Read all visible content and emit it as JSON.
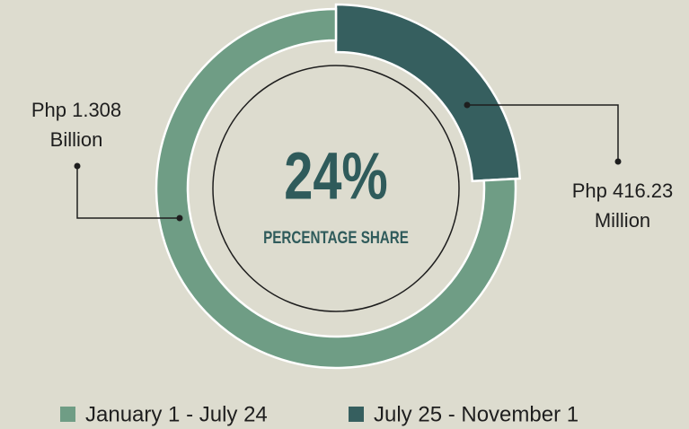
{
  "chart_data": {
    "type": "donut",
    "categories": [
      "January 1 - July 24",
      "July 25 - November 1"
    ],
    "values": [
      1308000000,
      416230000
    ],
    "value_labels": [
      "Php 1.308 Billion",
      "Php 416.23 Million"
    ],
    "colors": [
      "#6f9d85",
      "#365f5f"
    ],
    "center_label": "24%",
    "center_sublabel": "PERCENTAGE SHARE",
    "legend": "bottom"
  }
}
